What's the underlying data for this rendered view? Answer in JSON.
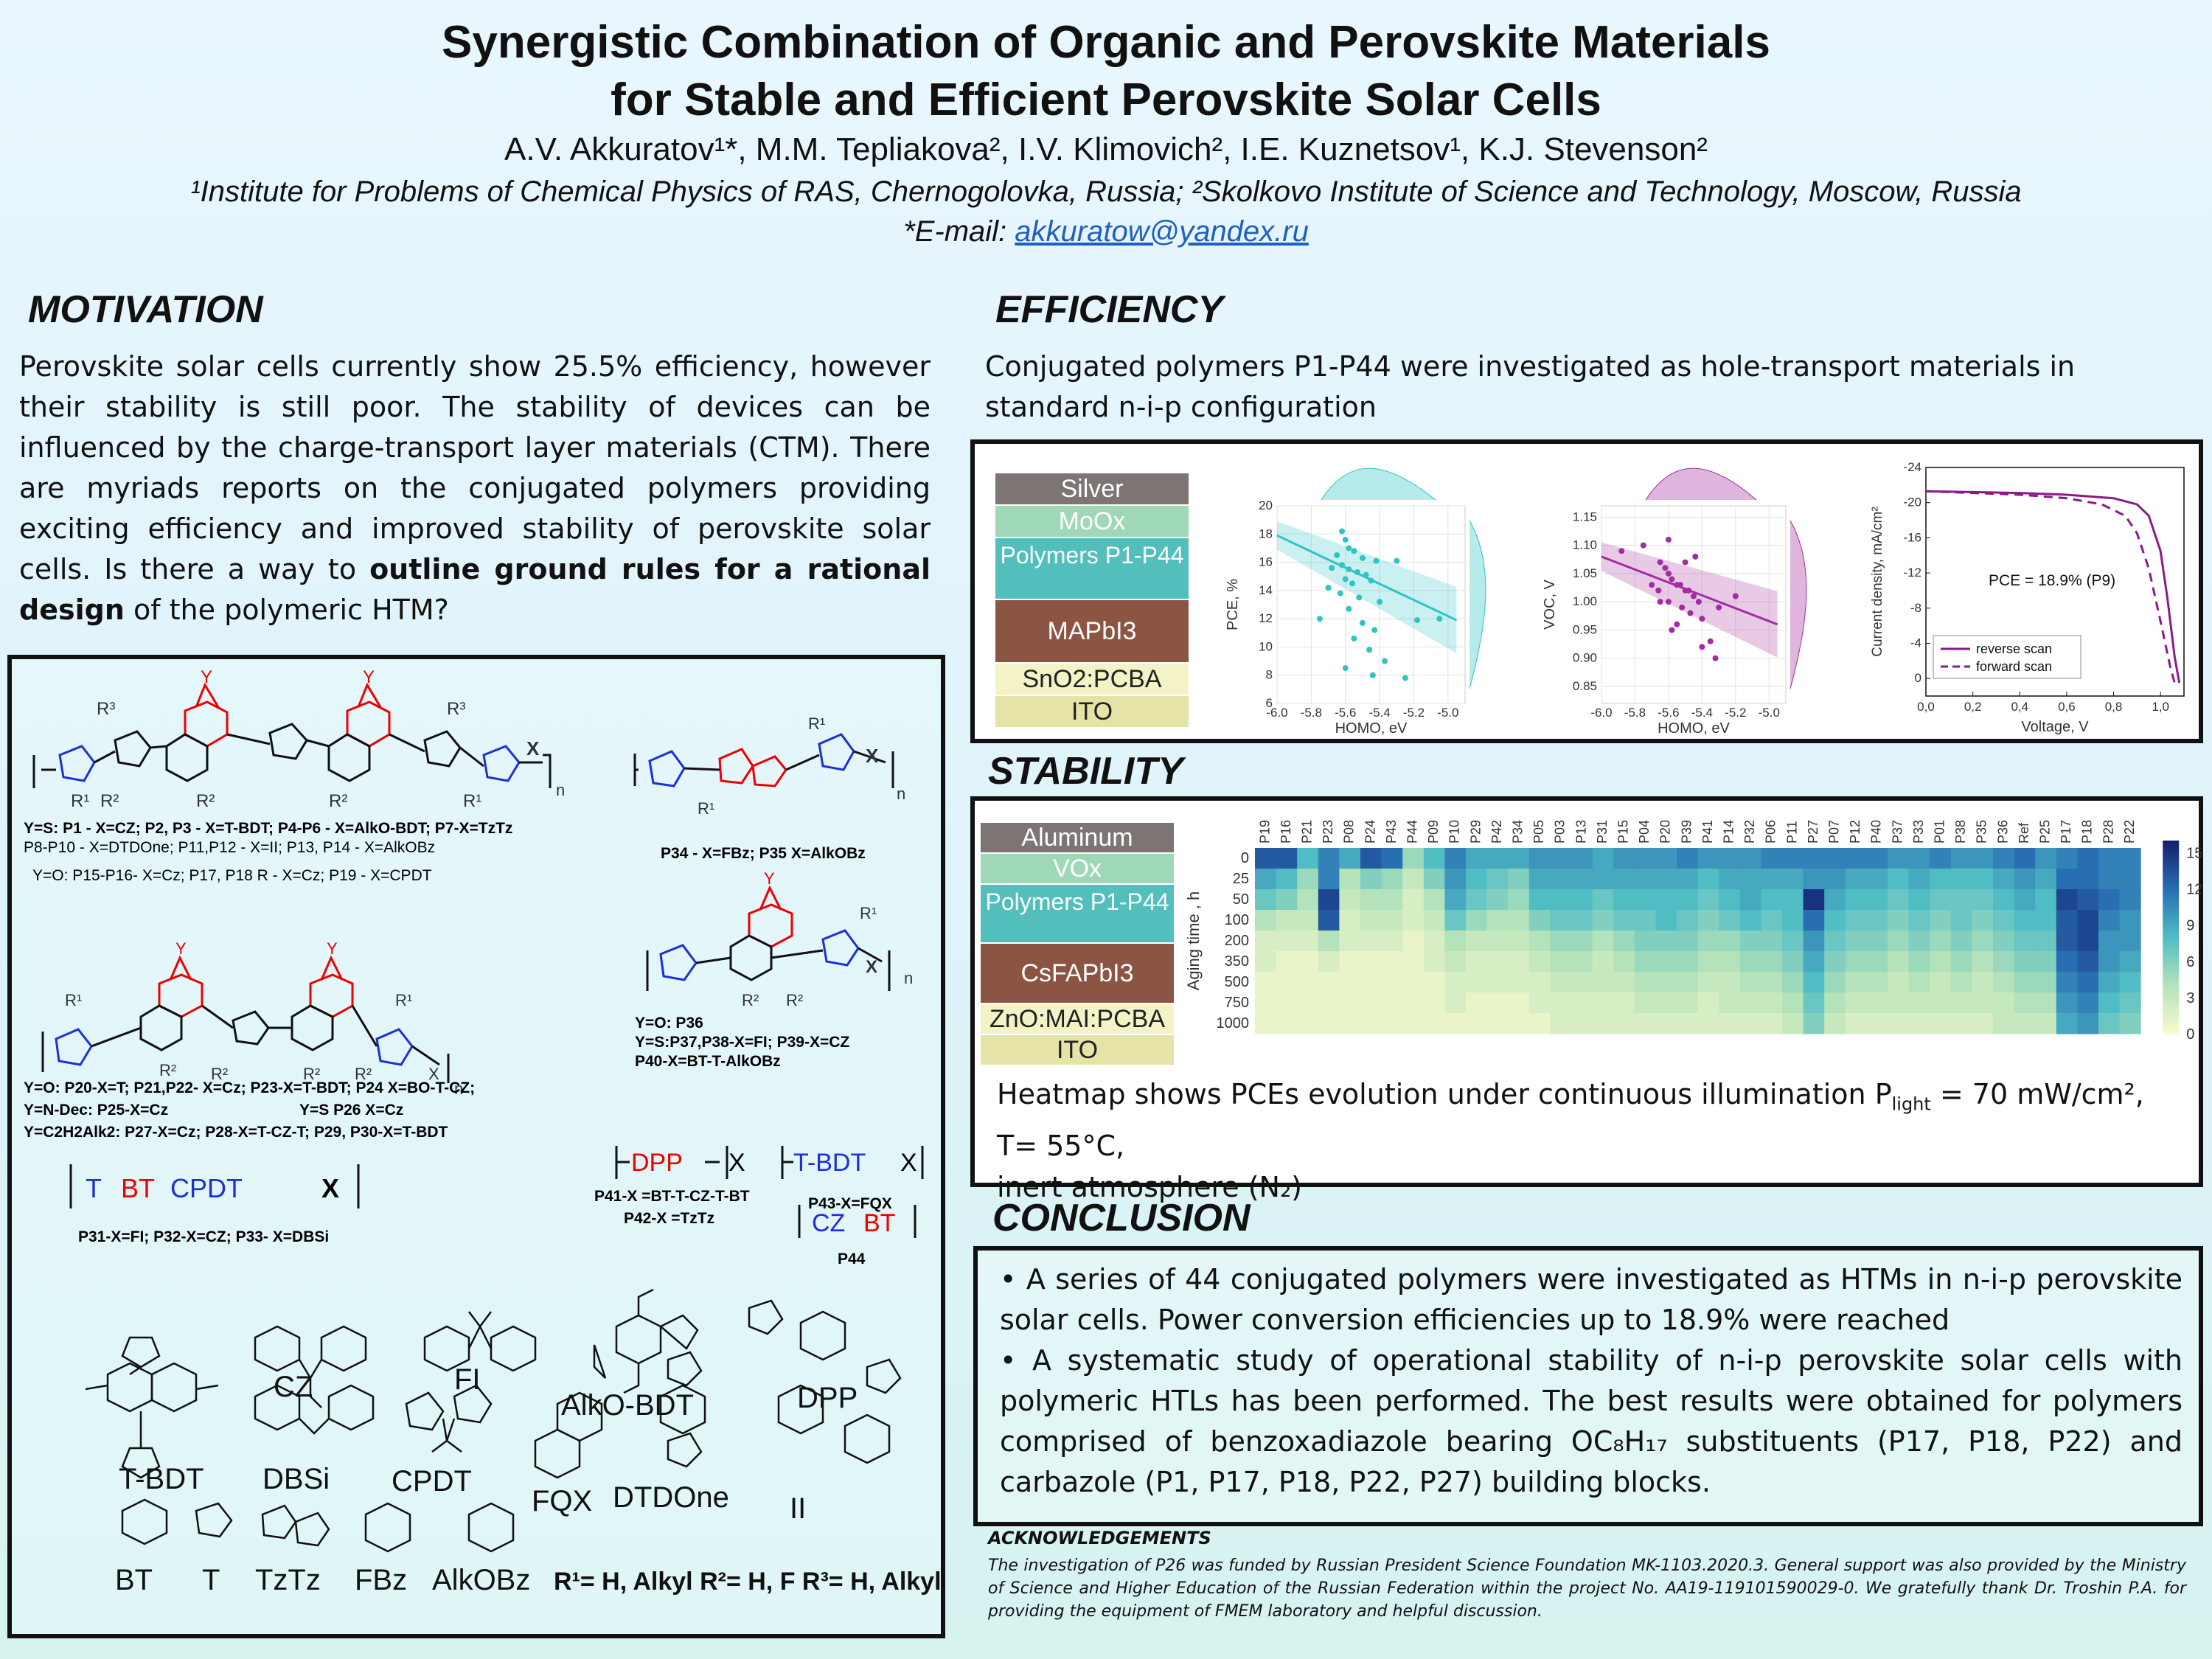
{
  "header": {
    "title_line1": "Synergistic Combination of Organic and Perovskite Materials",
    "title_line2": "for Stable and Efficient Perovskite Solar Cells",
    "authors": "A.V. Akkuratov¹*, M.M. Tepliakova², I.V. Klimovich², I.E. Kuznetsov¹, K.J. Stevenson²",
    "affiliations": "¹Institute for Problems of Chemical Physics of RAS, Chernogolovka, Russia; ²Skolkovo Institute of Science and Technology, Moscow, Russia",
    "email_prefix": "*E-mail: ",
    "email": "akkuratow@yandex.ru"
  },
  "motivation": {
    "heading": "MOTIVATION",
    "text_a": "Perovskite solar cells currently show 25.5% efficiency, however their stability is still poor. The stability of devices can be influenced by the charge-transport layer materials (CTM). There are myriads reports on the conjugated polymers providing exciting efficiency and improved stability of perovskite solar cells. Is there a way to ",
    "text_bold": "outline ground rules for a rational design",
    "text_b": " of the polymeric HTM?"
  },
  "structures": {
    "label_group1_line1": "Y=S: P1 - X=CZ; P2, P3 - X=T-BDT; P4-P6 - X=AlkO-BDT; P7-X=TzTz",
    "label_group1_line2": "P8-P10 - X=DTDOne; P11,P12 - X=II; P13, P14 - X=AlkOBz",
    "label_group1_line3": "Y=O: P15-P16- X=Cz; P17, P18 R - X=Cz; P19 - X=CPDT",
    "label_p34": "P34 - X=FBz; P35 X=AlkOBz",
    "label_p36_line1": "Y=O: P36",
    "label_p36_line2": "Y=S:P37,P38-X=FI; P39-X=CZ",
    "label_p36_line3": "P40-X=BT-T-AlkOBz",
    "label_group2_line1": "Y=O: P20-X=T; P21,P22- X=Cz; P23-X=T-BDT; P24 X=BO-T-CZ;",
    "label_group2_line2": "Y=N-Dec: P25-X=Cz",
    "label_group2_line2b": "Y=S P26 X=Cz",
    "label_group2_line3": "Y=C2H2Alk2: P27-X=Cz; P28-X=T-CZ-T; P29, P30-X=T-BDT",
    "dpp_formula": "DPP",
    "dpp_x": "X",
    "tbdt_formula": "T-BDT",
    "tbdt_x": "X",
    "p41": "P41-X =BT-T-CZ-T-BT",
    "p42": "P42-X =TzTz",
    "p43": "P43-X=FQX",
    "cz_formula": "CZ",
    "bt_formula": "BT",
    "p44": "P44",
    "tbt_formula_T": "T",
    "tbt_formula_BT": "BT",
    "tbt_formula_CPDT": "CPDT",
    "tbt_formula_X": "X",
    "label_p31": "P31-X=FI; P32-X=CZ; P33- X=DBSi",
    "blocks": [
      "T-BDT",
      "CZ",
      "FI",
      "AlkO-BDT",
      "DPP",
      "DBSi",
      "CPDT",
      "FQX",
      "DTDOne",
      "II",
      "BT",
      "T",
      "TzTz",
      "FBz",
      "AlkOBz"
    ],
    "substituents": "R¹= H, Alkyl  R²= H, F  R³= H, Alkyl",
    "sub_R": "R",
    "sub_Y": "Y",
    "sub_X": "X",
    "sub_n": "n",
    "sub_Dec": "Dec"
  },
  "efficiency": {
    "heading": "EFFICIENCY",
    "text": "Conjugated polymers P1-P44 were investigated as hole-transport materials in standard n-i-p configuration",
    "stack": [
      {
        "label": "Silver",
        "color": "#7d7474"
      },
      {
        "label": "MoOx",
        "color": "#9fd8b6"
      },
      {
        "label": "Polymers P1-P44",
        "color": "#52bfbd"
      },
      {
        "label": "MAPbI3",
        "color": "#8c5443"
      },
      {
        "label": "SnO2:PCBA",
        "color": "#f4f3c8"
      },
      {
        "label": "ITO",
        "color": "#e6e3a6"
      }
    ]
  },
  "stability": {
    "heading": "STABILITY",
    "stack": [
      {
        "label": "Aluminum",
        "color": "#7d7474"
      },
      {
        "label": "VOx",
        "color": "#9fd8b6"
      },
      {
        "label": "Polymers P1-P44",
        "color": "#52bfbd"
      },
      {
        "label": "CsFAPbI3",
        "color": "#8c5443"
      },
      {
        "label": "ZnO:MAI:PCBA",
        "color": "#f4f3c8"
      },
      {
        "label": "ITO",
        "color": "#e6e3a6"
      }
    ],
    "caption_line1": "Heatmap shows PCEs evolution under continuous illumination P",
    "caption_sub": "light",
    "caption_line1b": " = 70 mW/cm², T= 55°C,",
    "caption_line2": "inert atmosphere (N₂)"
  },
  "conclusion": {
    "heading": "CONCLUSION",
    "bullet1": "A series of 44 conjugated polymers were investigated as HTMs in n-i-p perovskite solar cells. Power conversion efficiencies up to 18.9% were reached",
    "bullet2": "A systematic study of operational stability of n-i-p perovskite solar cells with polymeric HTLs has been performed. The best results were obtained for polymers comprised of benzoxadiazole bearing OC₈H₁₇ substituents (P17, P18, P22) and carbazole (P1, P17, P18, P22, P27) building blocks."
  },
  "acknowledgements": {
    "heading": "ACKNOWLEDGEMENTS",
    "text": "The investigation of P26 was funded by Russian President Science Foundation MK-1103.2020.3. General support was also provided by the Ministry of Science and Higher Education of the Russian Federation within the project No. AA19-119101590029-0. We gratefully thank Dr. Troshin P.A. for providing the equipment of FMEM laboratory and helpful discussion."
  },
  "chart_data": [
    {
      "type": "scatter",
      "xlabel": "HOMO, eV",
      "ylabel": "PCE, %",
      "xlim": [
        -6.0,
        -4.9
      ],
      "ylim": [
        6,
        20
      ],
      "xticks": [
        "-6.0",
        "-5.8",
        "-5.6",
        "-5.4",
        "-5.2",
        "-5.0"
      ],
      "yticks": [
        "6",
        "8",
        "10",
        "12",
        "14",
        "16",
        "18",
        "20"
      ],
      "points": [
        [
          -5.62,
          18.2
        ],
        [
          -5.6,
          17.6
        ],
        [
          -5.58,
          17.0
        ],
        [
          -5.55,
          16.8
        ],
        [
          -5.65,
          16.5
        ],
        [
          -5.5,
          16.3
        ],
        [
          -5.42,
          16.1
        ],
        [
          -5.3,
          16.1
        ],
        [
          -5.62,
          15.8
        ],
        [
          -5.58,
          15.5
        ],
        [
          -5.53,
          15.3
        ],
        [
          -5.48,
          15.1
        ],
        [
          -5.6,
          14.8
        ],
        [
          -5.45,
          14.7
        ],
        [
          -5.56,
          14.5
        ],
        [
          -5.7,
          14.2
        ],
        [
          -5.63,
          13.8
        ],
        [
          -5.52,
          13.5
        ],
        [
          -5.4,
          13.2
        ],
        [
          -5.58,
          12.7
        ],
        [
          -5.75,
          12.0
        ],
        [
          -5.5,
          11.7
        ],
        [
          -5.43,
          11.2
        ],
        [
          -5.55,
          10.6
        ],
        [
          -5.46,
          9.8
        ],
        [
          -5.37,
          9.0
        ],
        [
          -5.6,
          8.5
        ],
        [
          -5.44,
          8.0
        ],
        [
          -5.25,
          7.8
        ],
        [
          -5.05,
          12.0
        ],
        [
          -5.18,
          11.9
        ],
        [
          -5.68,
          15.6
        ]
      ],
      "trend": [
        [
          -6.0,
          17.9
        ],
        [
          -4.95,
          11.9
        ]
      ]
    },
    {
      "type": "scatter",
      "xlabel": "HOMO, eV",
      "ylabel": "VOC, V",
      "xlim": [
        -6.0,
        -4.9
      ],
      "ylim": [
        0.82,
        1.17
      ],
      "xticks": [
        "-6.0",
        "-5.8",
        "-5.6",
        "-5.4",
        "-5.2",
        "-5.0"
      ],
      "yticks": [
        "0.85",
        "0.90",
        "0.95",
        "1.00",
        "1.05",
        "1.10",
        "1.15"
      ],
      "points": [
        [
          -5.88,
          1.09
        ],
        [
          -5.75,
          1.1
        ],
        [
          -5.65,
          1.07
        ],
        [
          -5.62,
          1.06
        ],
        [
          -5.6,
          1.05
        ],
        [
          -5.58,
          1.04
        ],
        [
          -5.55,
          1.03
        ],
        [
          -5.53,
          1.03
        ],
        [
          -5.5,
          1.02
        ],
        [
          -5.48,
          1.02
        ],
        [
          -5.45,
          1.01
        ],
        [
          -5.42,
          1.0
        ],
        [
          -5.6,
          1.0
        ],
        [
          -5.65,
          1.0
        ],
        [
          -5.52,
          0.99
        ],
        [
          -5.47,
          0.98
        ],
        [
          -5.4,
          0.97
        ],
        [
          -5.55,
          0.96
        ],
        [
          -5.58,
          0.95
        ],
        [
          -5.35,
          0.93
        ],
        [
          -5.3,
          0.99
        ],
        [
          -5.2,
          1.01
        ],
        [
          -5.5,
          1.07
        ],
        [
          -5.44,
          1.08
        ],
        [
          -5.7,
          1.03
        ],
        [
          -5.66,
          1.02
        ],
        [
          -5.4,
          0.92
        ],
        [
          -5.32,
          0.9
        ],
        [
          -5.6,
          1.11
        ]
      ],
      "trend": [
        [
          -6.0,
          1.08
        ],
        [
          -4.95,
          0.96
        ]
      ]
    },
    {
      "type": "line",
      "xlabel": "Voltage, V",
      "ylabel": "Current density, mA/cm²",
      "xlim": [
        0.0,
        1.1
      ],
      "ylim": [
        -24,
        2
      ],
      "xticks": [
        "0,0",
        "0,2",
        "0,4",
        "0,6",
        "0,8",
        "1,0"
      ],
      "yticks": [
        "-24",
        "-20",
        "-16",
        "-12",
        "-8",
        "-4",
        "0"
      ],
      "annotation": "PCE = 18.9% (P9)",
      "series": [
        {
          "name": "reverse scan",
          "style": "solid",
          "points": [
            [
              0,
              -21.3
            ],
            [
              0.2,
              -21.2
            ],
            [
              0.4,
              -21.1
            ],
            [
              0.6,
              -20.9
            ],
            [
              0.8,
              -20.5
            ],
            [
              0.9,
              -19.8
            ],
            [
              0.95,
              -18.5
            ],
            [
              1.0,
              -14.5
            ],
            [
              1.03,
              -9.0
            ],
            [
              1.06,
              -2.5
            ],
            [
              1.08,
              0.5
            ]
          ]
        },
        {
          "name": "forward scan",
          "style": "dashed",
          "points": [
            [
              0,
              -21.3
            ],
            [
              0.2,
              -21.1
            ],
            [
              0.4,
              -20.9
            ],
            [
              0.6,
              -20.5
            ],
            [
              0.75,
              -19.8
            ],
            [
              0.85,
              -18.5
            ],
            [
              0.9,
              -16.5
            ],
            [
              0.95,
              -12.5
            ],
            [
              1.0,
              -6.5
            ],
            [
              1.04,
              -1.5
            ],
            [
              1.06,
              0.5
            ]
          ]
        }
      ]
    },
    {
      "type": "heatmap",
      "xlabel": "",
      "ylabel": "Aging time , h",
      "columns": [
        "P19",
        "P16",
        "P21",
        "P23",
        "P08",
        "P24",
        "P43",
        "P44",
        "P09",
        "P10",
        "P29",
        "P42",
        "P34",
        "P05",
        "P03",
        "P13",
        "P31",
        "P15",
        "P04",
        "P20",
        "P39",
        "P41",
        "P14",
        "P32",
        "P06",
        "P11",
        "P27",
        "P07",
        "P12",
        "P40",
        "P37",
        "P33",
        "P01",
        "P38",
        "P35",
        "P36",
        "Ref",
        "P25",
        "P17",
        "P18",
        "P28",
        "P22"
      ],
      "rows": [
        "0",
        "25",
        "50",
        "100",
        "200",
        "350",
        "500",
        "750",
        "1000"
      ],
      "colorbar_ticks": [
        "15",
        "12",
        "9",
        "6",
        "3",
        "0"
      ],
      "vmin": 0,
      "vmax": 16,
      "values": [
        [
          13,
          13,
          8,
          11,
          9,
          13,
          12,
          5,
          8,
          11,
          9,
          9,
          9,
          10,
          10,
          10,
          9,
          10,
          10,
          10,
          11,
          10,
          10,
          10,
          11,
          11,
          11,
          11,
          11,
          11,
          10,
          10,
          11,
          10,
          10,
          11,
          12,
          10,
          11,
          12,
          11,
          11
        ],
        [
          9,
          8,
          5,
          11,
          4,
          6,
          5,
          3,
          6,
          10,
          8,
          7,
          6,
          9,
          9,
          9,
          9,
          9,
          9,
          9,
          9,
          8,
          9,
          9,
          9,
          9,
          10,
          10,
          9,
          9,
          8,
          9,
          8,
          8,
          8,
          9,
          10,
          9,
          12,
          12,
          11,
          11
        ],
        [
          7,
          6,
          4,
          14,
          3,
          4,
          4,
          2,
          4,
          9,
          7,
          6,
          5,
          8,
          8,
          8,
          7,
          8,
          8,
          8,
          8,
          7,
          8,
          9,
          8,
          8,
          15,
          9,
          8,
          8,
          7,
          8,
          7,
          7,
          7,
          8,
          9,
          8,
          14,
          13,
          12,
          11
        ],
        [
          4,
          3,
          3,
          13,
          2,
          3,
          3,
          2,
          3,
          7,
          5,
          4,
          4,
          6,
          7,
          7,
          6,
          7,
          7,
          8,
          7,
          6,
          7,
          8,
          7,
          8,
          12,
          8,
          7,
          7,
          6,
          7,
          6,
          7,
          6,
          7,
          8,
          8,
          13,
          14,
          11,
          10
        ],
        [
          2,
          2,
          2,
          4,
          2,
          2,
          2,
          1,
          2,
          4,
          3,
          3,
          3,
          4,
          5,
          5,
          4,
          5,
          6,
          6,
          6,
          5,
          5,
          6,
          6,
          7,
          10,
          7,
          6,
          6,
          5,
          6,
          5,
          6,
          5,
          6,
          7,
          7,
          13,
          14,
          10,
          10
        ],
        [
          2,
          1,
          1,
          2,
          1,
          1,
          1,
          1,
          2,
          3,
          2,
          2,
          2,
          3,
          4,
          4,
          3,
          4,
          5,
          5,
          5,
          4,
          4,
          5,
          5,
          6,
          9,
          6,
          5,
          5,
          4,
          5,
          4,
          5,
          4,
          5,
          6,
          6,
          12,
          13,
          10,
          9
        ],
        [
          1,
          1,
          1,
          1,
          1,
          1,
          1,
          1,
          1,
          2,
          2,
          2,
          2,
          2,
          3,
          3,
          3,
          3,
          4,
          4,
          4,
          3,
          3,
          4,
          4,
          5,
          8,
          5,
          4,
          4,
          3,
          4,
          3,
          4,
          3,
          4,
          5,
          5,
          11,
          12,
          9,
          8
        ],
        [
          1,
          1,
          1,
          1,
          1,
          1,
          1,
          1,
          1,
          2,
          1,
          1,
          1,
          2,
          2,
          2,
          2,
          2,
          3,
          3,
          3,
          2,
          3,
          3,
          3,
          4,
          7,
          4,
          3,
          3,
          3,
          3,
          3,
          3,
          3,
          3,
          4,
          4,
          10,
          11,
          8,
          7
        ],
        [
          1,
          1,
          1,
          1,
          1,
          1,
          1,
          1,
          1,
          1,
          1,
          1,
          1,
          1,
          2,
          2,
          2,
          2,
          2,
          2,
          2,
          2,
          2,
          2,
          2,
          3,
          6,
          3,
          2,
          2,
          2,
          2,
          2,
          2,
          2,
          3,
          3,
          3,
          9,
          10,
          7,
          6
        ]
      ]
    }
  ]
}
